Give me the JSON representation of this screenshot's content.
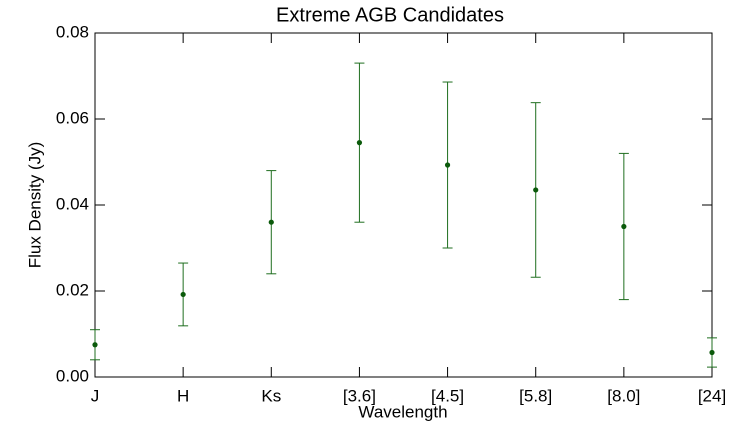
{
  "chart_data": {
    "type": "errorbar",
    "title": "Extreme AGB Candidates",
    "x_label": "Wavelength",
    "y_label": "Flux Density (Jy)",
    "categories": [
      "J",
      "H",
      "Ks",
      "[3.6]",
      "[4.5]",
      "[5.8]",
      "[8.0]",
      "[24]"
    ],
    "values": [
      0.0075,
      0.0192,
      0.036,
      0.0545,
      0.0493,
      0.0435,
      0.035,
      0.0057
    ],
    "errors": [
      0.0035,
      0.0073,
      0.012,
      0.0185,
      0.0193,
      0.0203,
      0.017,
      0.0034
    ],
    "color": "#1f6e1f",
    "marker_color": "#0b5a0b",
    "ylim": [
      0,
      0.08
    ],
    "yticks": [
      {
        "value": 0,
        "label": "0.00"
      },
      {
        "value": 0.02,
        "label": "0.02"
      },
      {
        "value": 0.04,
        "label": "0.04"
      },
      {
        "value": 0.06,
        "label": "0.06"
      },
      {
        "value": 0.08,
        "label": "0.08"
      }
    ]
  }
}
